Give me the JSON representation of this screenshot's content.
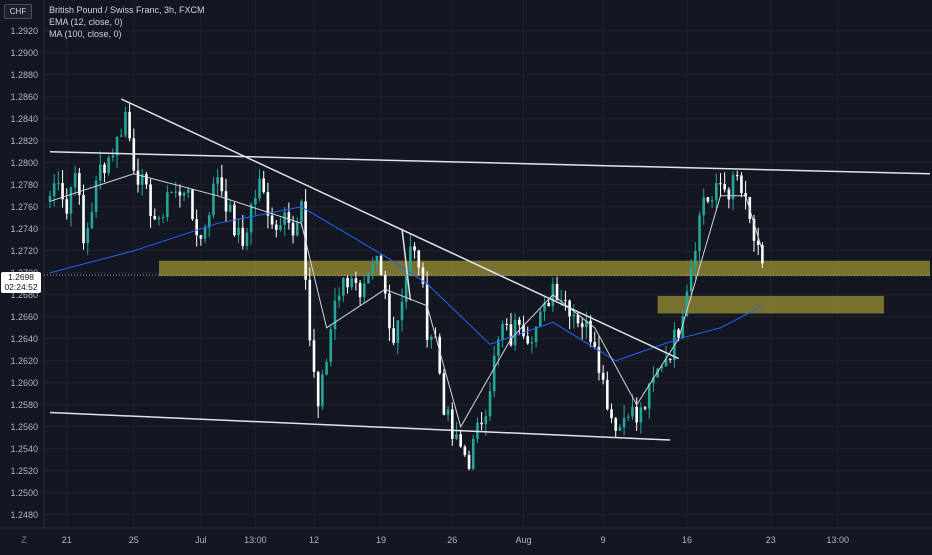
{
  "legend": {
    "title": "British Pound / Swiss Franc, 3h, FXCM",
    "ema": "EMA (12, close, 0)",
    "ma": "MA (100, close, 0)"
  },
  "currency": "CHF",
  "last_price": {
    "price": "1.2698",
    "countdown": "02:24:52"
  },
  "colors": {
    "background": "#131722",
    "up_candle": "#26a69a",
    "down_candle": "#ffffff",
    "ema_line": "#d1d4dc",
    "ma_line": "#2962ff",
    "zone_fill": "#8c8230",
    "trendline": "#e0e3eb"
  },
  "icons": {
    "scale_toggle": "Z"
  },
  "chart_data": {
    "type": "candlestick",
    "title": "British Pound / Swiss Franc, 3h, FXCM",
    "ylim": [
      1.2468,
      1.2948
    ],
    "y_ticks": [
      "1.2920",
      "1.2900",
      "1.2880",
      "1.2860",
      "1.2840",
      "1.2820",
      "1.2800",
      "1.2780",
      "1.2760",
      "1.2740",
      "1.2720",
      "1.2700",
      "1.2680",
      "1.2660",
      "1.2640",
      "1.2620",
      "1.2600",
      "1.2580",
      "1.2560",
      "1.2540",
      "1.2520",
      "1.2500",
      "1.2480"
    ],
    "x_ticks": [
      "21",
      "25",
      "Jul",
      "13:00",
      "12",
      "19",
      "26",
      "Aug",
      "9",
      "16",
      "23",
      "13:00"
    ],
    "grid": true,
    "price_path": [
      [
        0,
        1.277
      ],
      [
        2,
        1.279
      ],
      [
        4,
        1.2755
      ],
      [
        6,
        1.28
      ],
      [
        8,
        1.2725
      ],
      [
        10,
        1.276
      ],
      [
        12,
        1.2795
      ],
      [
        14,
        1.2805
      ],
      [
        16,
        1.282
      ],
      [
        18,
        1.2845
      ],
      [
        20,
        1.28
      ],
      [
        22,
        1.278
      ],
      [
        24,
        1.276
      ],
      [
        26,
        1.274
      ],
      [
        28,
        1.2775
      ],
      [
        30,
        1.277
      ],
      [
        32,
        1.278
      ],
      [
        34,
        1.275
      ],
      [
        36,
        1.273
      ],
      [
        38,
        1.276
      ],
      [
        40,
        1.279
      ],
      [
        42,
        1.2765
      ],
      [
        44,
        1.274
      ],
      [
        46,
        1.2725
      ],
      [
        48,
        1.276
      ],
      [
        50,
        1.278
      ],
      [
        52,
        1.276
      ],
      [
        54,
        1.274
      ],
      [
        56,
        1.2765
      ],
      [
        58,
        1.273
      ],
      [
        60,
        1.2755
      ],
      [
        62,
        1.264
      ],
      [
        64,
        1.258
      ],
      [
        66,
        1.262
      ],
      [
        68,
        1.268
      ],
      [
        70,
        1.269
      ],
      [
        72,
        1.27
      ],
      [
        74,
        1.267
      ],
      [
        76,
        1.269
      ],
      [
        78,
        1.271
      ],
      [
        80,
        1.268
      ],
      [
        82,
        1.264
      ],
      [
        84,
        1.268
      ],
      [
        86,
        1.272
      ],
      [
        88,
        1.271
      ],
      [
        90,
        1.265
      ],
      [
        92,
        1.264
      ],
      [
        94,
        1.258
      ],
      [
        96,
        1.255
      ],
      [
        98,
        1.254
      ],
      [
        100,
        1.253
      ],
      [
        102,
        1.2555
      ],
      [
        104,
        1.258
      ],
      [
        106,
        1.262
      ],
      [
        108,
        1.265
      ],
      [
        110,
        1.264
      ],
      [
        112,
        1.266
      ],
      [
        114,
        1.2645
      ],
      [
        116,
        1.265
      ],
      [
        118,
        1.2665
      ],
      [
        120,
        1.269
      ],
      [
        122,
        1.268
      ],
      [
        124,
        1.267
      ],
      [
        126,
        1.266
      ],
      [
        128,
        1.265
      ],
      [
        130,
        1.264
      ],
      [
        132,
        1.26
      ],
      [
        134,
        1.257
      ],
      [
        136,
        1.256
      ],
      [
        138,
        1.258
      ],
      [
        140,
        1.2565
      ],
      [
        142,
        1.258
      ],
      [
        144,
        1.26
      ],
      [
        146,
        1.262
      ],
      [
        148,
        1.263
      ],
      [
        150,
        1.265
      ],
      [
        152,
        1.269
      ],
      [
        154,
        1.273
      ],
      [
        156,
        1.277
      ],
      [
        158,
        1.2765
      ],
      [
        160,
        1.278
      ],
      [
        162,
        1.2775
      ],
      [
        164,
        1.2785
      ],
      [
        166,
        1.276
      ],
      [
        168,
        1.273
      ],
      [
        170,
        1.27
      ]
    ],
    "ema_12": [
      [
        0,
        1.2765
      ],
      [
        20,
        1.279
      ],
      [
        40,
        1.277
      ],
      [
        60,
        1.2745
      ],
      [
        66,
        1.265
      ],
      [
        80,
        1.2685
      ],
      [
        90,
        1.267
      ],
      [
        98,
        1.256
      ],
      [
        110,
        1.264
      ],
      [
        120,
        1.268
      ],
      [
        130,
        1.265
      ],
      [
        140,
        1.258
      ],
      [
        150,
        1.264
      ],
      [
        160,
        1.277
      ],
      [
        166,
        1.277
      ],
      [
        170,
        1.272
      ]
    ],
    "ma_100": [
      [
        0,
        1.27
      ],
      [
        20,
        1.272
      ],
      [
        40,
        1.2745
      ],
      [
        60,
        1.276
      ],
      [
        80,
        1.2715
      ],
      [
        90,
        1.269
      ],
      [
        105,
        1.2635
      ],
      [
        120,
        1.2655
      ],
      [
        135,
        1.262
      ],
      [
        150,
        1.264
      ],
      [
        160,
        1.265
      ],
      [
        170,
        1.267
      ]
    ],
    "trendlines": [
      {
        "from": [
          17,
          1.2858
        ],
        "to": [
          150,
          1.2622
        ]
      },
      {
        "from": [
          0,
          1.281
        ],
        "to": [
          210,
          1.279
        ]
      },
      {
        "from": [
          0,
          1.2573
        ],
        "to": [
          148,
          1.2548
        ]
      },
      {
        "from": [
          84,
          1.274
        ],
        "to": [
          86,
          1.2675
        ]
      }
    ],
    "zones": [
      {
        "x": [
          26,
          210
        ],
        "y": [
          1.2697,
          1.2711
        ]
      },
      {
        "x": [
          145,
          199
        ],
        "y": [
          1.2663,
          1.2679
        ]
      }
    ]
  }
}
